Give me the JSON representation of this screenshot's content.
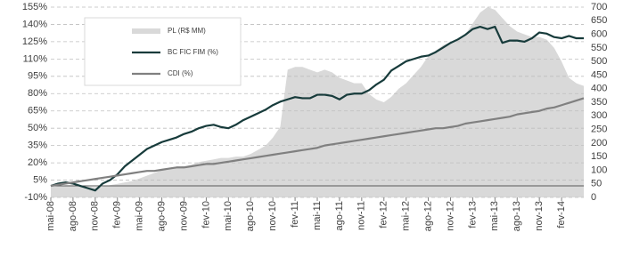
{
  "chart_data": {
    "type": "line",
    "categories": [
      "mai-08",
      null,
      null,
      "ago-08",
      null,
      null,
      "nov-08",
      null,
      null,
      "fev-09",
      null,
      null,
      "mai-09",
      null,
      null,
      "ago-09",
      null,
      null,
      "nov-09",
      null,
      null,
      "fev-10",
      null,
      null,
      "mai-10",
      null,
      null,
      "ago-10",
      null,
      null,
      "nov-10",
      null,
      null,
      "fev-11",
      null,
      null,
      "mai-11",
      null,
      null,
      "ago-11",
      null,
      null,
      "nov-11",
      null,
      null,
      "fev-12",
      null,
      null,
      "mai-12",
      null,
      null,
      "ago-12",
      null,
      null,
      "nov-12",
      null,
      null,
      "fev-13",
      null,
      null,
      "mai-13",
      null,
      null,
      "ago-13",
      null,
      null,
      "nov-13",
      null,
      null,
      "fev-14",
      null,
      null,
      null
    ],
    "series": [
      {
        "name": "PL (R$ MM)",
        "type": "area",
        "axis": "y2",
        "color": "#d9d9d9",
        "values": [
          40,
          42,
          45,
          45,
          42,
          40,
          38,
          40,
          45,
          50,
          55,
          60,
          70,
          80,
          90,
          100,
          105,
          110,
          115,
          120,
          130,
          135,
          140,
          145,
          145,
          150,
          150,
          160,
          175,
          190,
          220,
          260,
          470,
          480,
          480,
          470,
          460,
          470,
          460,
          440,
          430,
          420,
          420,
          380,
          360,
          350,
          370,
          400,
          420,
          450,
          480,
          520,
          540,
          560,
          570,
          580,
          600,
          640,
          680,
          700,
          690,
          660,
          630,
          610,
          600,
          590,
          590,
          580,
          550,
          500,
          440,
          420,
          410
        ]
      },
      {
        "name": "BC FIC FIM (%)",
        "type": "line",
        "color": "#173b3b",
        "values": [
          0,
          2,
          3,
          2,
          0,
          -2,
          -4,
          2,
          5,
          10,
          17,
          22,
          27,
          32,
          35,
          38,
          40,
          42,
          45,
          47,
          50,
          52,
          53,
          51,
          50,
          53,
          57,
          60,
          63,
          66,
          70,
          73,
          75,
          77,
          76,
          76,
          79,
          79,
          78,
          75,
          79,
          80,
          80,
          83,
          88,
          92,
          100,
          104,
          108,
          110,
          112,
          113,
          116,
          120,
          124,
          127,
          131,
          136,
          138,
          136,
          138,
          124,
          126,
          126,
          125,
          128,
          133,
          132,
          129,
          128,
          130,
          128,
          128
        ]
      },
      {
        "name": "CDI (%)",
        "type": "line",
        "color": "#808080",
        "values": [
          0,
          1,
          2,
          3,
          4,
          5,
          6,
          7,
          8,
          9,
          10,
          11,
          12,
          13,
          13,
          14,
          15,
          16,
          16,
          17,
          18,
          19,
          19,
          20,
          21,
          22,
          23,
          24,
          25,
          26,
          27,
          28,
          29,
          30,
          31,
          32,
          33,
          35,
          36,
          37,
          38,
          39,
          40,
          41,
          42,
          43,
          44,
          45,
          46,
          47,
          48,
          49,
          50,
          50,
          51,
          52,
          54,
          55,
          56,
          57,
          58,
          59,
          60,
          62,
          63,
          64,
          65,
          67,
          68,
          70,
          72,
          74,
          76
        ]
      }
    ],
    "ylim": [
      -10,
      155
    ],
    "yticks": [
      {
        "value": -10,
        "label": "-10%"
      },
      {
        "value": 5,
        "label": "5%"
      },
      {
        "value": 20,
        "label": "20%"
      },
      {
        "value": 35,
        "label": "35%"
      },
      {
        "value": 50,
        "label": "50%"
      },
      {
        "value": 65,
        "label": "65%"
      },
      {
        "value": 80,
        "label": "80%"
      },
      {
        "value": 95,
        "label": "95%"
      },
      {
        "value": 110,
        "label": "110%"
      },
      {
        "value": 125,
        "label": "125%"
      },
      {
        "value": 140,
        "label": "140%"
      },
      {
        "value": 155,
        "label": "155%"
      }
    ],
    "y2lim": [
      0,
      700
    ],
    "y2ticks": [
      0,
      50,
      100,
      150,
      200,
      250,
      300,
      350,
      400,
      450,
      500,
      550,
      600,
      650,
      700
    ],
    "grid": true
  }
}
